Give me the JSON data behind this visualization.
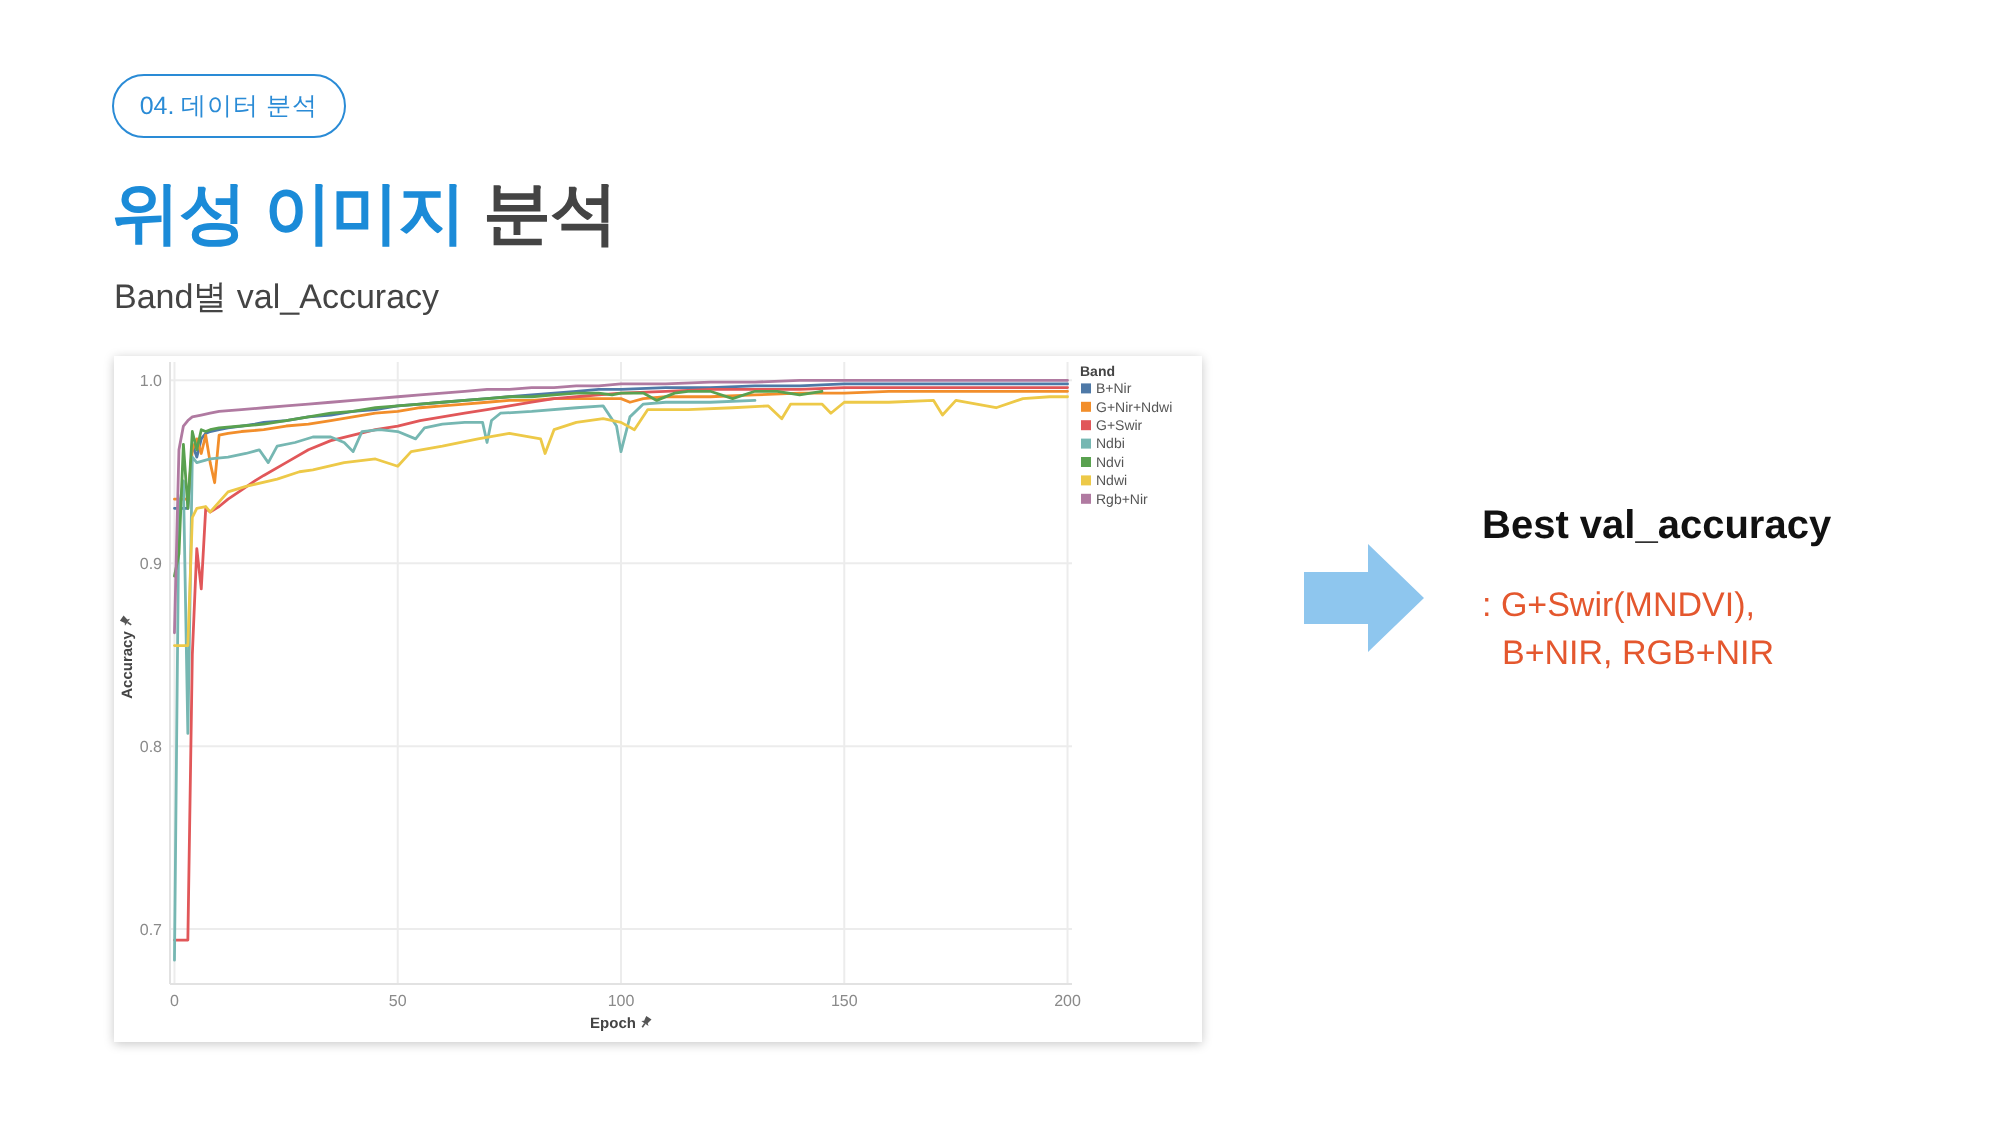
{
  "chart_data": {
    "type": "line",
    "title": "위성 이미지 분석",
    "subtitle": "Band별 val_Accuracy",
    "xlabel": "Epoch",
    "ylabel": "Accuracy",
    "legend_title": "Band",
    "annotations": [
      "04. 데이터 분석",
      "Best val_accuracy",
      ": G+Swir(MNDVI), B+NIR, RGB+NIR"
    ],
    "xlim": [
      -1,
      201
    ],
    "ylim": [
      0.67,
      1.01
    ],
    "xticks": [
      0,
      50,
      100,
      150,
      200
    ],
    "yticks": [
      0.7,
      0.8,
      0.9,
      {
        "value": 1,
        "label": "1.0"
      }
    ],
    "grid": true,
    "legend": "right",
    "line_style": "solid",
    "series": [
      {
        "name": "B+Nir",
        "color": "#4e79a7",
        "x": [
          0,
          1,
          2,
          3,
          4,
          5,
          6,
          7,
          8,
          10,
          12,
          15,
          18,
          20,
          25,
          30,
          35,
          40,
          45,
          50,
          55,
          60,
          65,
          70,
          75,
          80,
          85,
          90,
          95,
          100,
          110,
          120,
          130,
          140,
          150,
          160,
          170,
          180,
          190,
          200
        ],
        "values": [
          0.93,
          0.93,
          0.93,
          0.93,
          0.965,
          0.958,
          0.968,
          0.971,
          0.972,
          0.973,
          0.974,
          0.975,
          0.976,
          0.977,
          0.978,
          0.98,
          0.981,
          0.983,
          0.984,
          0.986,
          0.987,
          0.988,
          0.989,
          0.99,
          0.991,
          0.992,
          0.993,
          0.994,
          0.995,
          0.995,
          0.996,
          0.996,
          0.997,
          0.997,
          0.998,
          0.998,
          0.998,
          0.998,
          0.998,
          0.998
        ]
      },
      {
        "name": "G+Nir+Ndwi",
        "color": "#f28e2b",
        "x": [
          0,
          1,
          2,
          3,
          4,
          5,
          6,
          7,
          8,
          9,
          10,
          12,
          15,
          20,
          25,
          30,
          35,
          40,
          45,
          50,
          55,
          60,
          65,
          70,
          75,
          80,
          85,
          90,
          95,
          100,
          102,
          105,
          110,
          120,
          130,
          140,
          150,
          160,
          170,
          180,
          190,
          200
        ],
        "values": [
          0.935,
          0.935,
          0.935,
          0.935,
          0.962,
          0.968,
          0.96,
          0.97,
          0.955,
          0.944,
          0.97,
          0.971,
          0.972,
          0.973,
          0.975,
          0.976,
          0.978,
          0.98,
          0.982,
          0.983,
          0.985,
          0.986,
          0.987,
          0.988,
          0.989,
          0.989,
          0.99,
          0.99,
          0.99,
          0.99,
          0.988,
          0.99,
          0.991,
          0.991,
          0.992,
          0.993,
          0.993,
          0.994,
          0.994,
          0.994,
          0.994,
          0.994
        ]
      },
      {
        "name": "G+Swir",
        "color": "#e15759",
        "x": [
          0,
          1,
          2,
          3,
          4,
          5,
          6,
          7,
          8,
          10,
          12,
          15,
          18,
          20,
          25,
          30,
          35,
          40,
          45,
          50,
          55,
          60,
          65,
          70,
          75,
          80,
          85,
          90,
          95,
          100,
          110,
          120,
          130,
          140,
          150,
          160,
          170,
          180,
          190,
          200
        ],
        "values": [
          0.694,
          0.694,
          0.694,
          0.694,
          0.85,
          0.908,
          0.886,
          0.93,
          0.928,
          0.931,
          0.935,
          0.94,
          0.945,
          0.948,
          0.955,
          0.962,
          0.967,
          0.97,
          0.973,
          0.975,
          0.978,
          0.98,
          0.982,
          0.984,
          0.986,
          0.988,
          0.99,
          0.991,
          0.992,
          0.993,
          0.994,
          0.995,
          0.995,
          0.995,
          0.996,
          0.996,
          0.996,
          0.996,
          0.996,
          0.996
        ]
      },
      {
        "name": "Ndbi",
        "color": "#76b7b2",
        "x": [
          0,
          1,
          2,
          3,
          4,
          5,
          8,
          12,
          16,
          19,
          21,
          23,
          27,
          31,
          35,
          38,
          40,
          42,
          46,
          50,
          54,
          56,
          60,
          65,
          69,
          70,
          71,
          73,
          80,
          90,
          96,
          99,
          100,
          102,
          105,
          110,
          120,
          130
        ],
        "values": [
          0.683,
          0.93,
          0.945,
          0.807,
          0.958,
          0.955,
          0.957,
          0.958,
          0.96,
          0.962,
          0.955,
          0.964,
          0.966,
          0.969,
          0.969,
          0.966,
          0.961,
          0.972,
          0.973,
          0.972,
          0.968,
          0.974,
          0.976,
          0.977,
          0.977,
          0.966,
          0.978,
          0.982,
          0.983,
          0.985,
          0.986,
          0.975,
          0.961,
          0.98,
          0.987,
          0.988,
          0.988,
          0.989
        ]
      },
      {
        "name": "Ndvi",
        "color": "#59a14f",
        "x": [
          0,
          1,
          2,
          3,
          4,
          5,
          6,
          7,
          8,
          10,
          15,
          20,
          25,
          30,
          35,
          40,
          45,
          50,
          55,
          60,
          65,
          70,
          75,
          80,
          85,
          90,
          95,
          98,
          100,
          105,
          108,
          112,
          115,
          120,
          125,
          130,
          135,
          140,
          145
        ],
        "values": [
          0.893,
          0.905,
          0.965,
          0.93,
          0.972,
          0.962,
          0.973,
          0.972,
          0.973,
          0.974,
          0.975,
          0.976,
          0.978,
          0.98,
          0.982,
          0.983,
          0.985,
          0.986,
          0.987,
          0.988,
          0.989,
          0.99,
          0.991,
          0.991,
          0.992,
          0.993,
          0.993,
          0.992,
          0.993,
          0.993,
          0.989,
          0.993,
          0.994,
          0.994,
          0.99,
          0.994,
          0.994,
          0.992,
          0.994
        ]
      },
      {
        "name": "Ndwi",
        "color": "#edc948",
        "x": [
          0,
          1,
          2,
          3,
          4,
          5,
          7,
          8,
          12,
          16,
          23,
          28,
          31,
          38,
          45,
          50,
          53,
          60,
          68,
          75,
          82,
          83,
          85,
          90,
          96,
          100,
          103,
          106,
          115,
          125,
          133,
          136,
          138,
          145,
          147,
          150,
          160,
          170,
          172,
          175,
          184,
          190,
          196,
          200
        ],
        "values": [
          0.855,
          0.855,
          0.855,
          0.855,
          0.925,
          0.93,
          0.931,
          0.928,
          0.939,
          0.942,
          0.946,
          0.95,
          0.951,
          0.955,
          0.957,
          0.953,
          0.961,
          0.964,
          0.968,
          0.971,
          0.968,
          0.96,
          0.973,
          0.977,
          0.979,
          0.977,
          0.973,
          0.984,
          0.984,
          0.985,
          0.986,
          0.979,
          0.987,
          0.987,
          0.982,
          0.988,
          0.988,
          0.989,
          0.981,
          0.989,
          0.985,
          0.99,
          0.991,
          0.991
        ]
      },
      {
        "name": "Rgb+Nir",
        "color": "#b07aa1",
        "x": [
          0,
          1,
          2,
          3,
          4,
          6,
          8,
          10,
          15,
          20,
          25,
          30,
          35,
          40,
          45,
          50,
          55,
          60,
          65,
          70,
          75,
          80,
          85,
          90,
          95,
          100,
          110,
          120,
          130,
          140,
          150,
          160,
          170,
          180,
          190,
          200
        ],
        "values": [
          0.862,
          0.962,
          0.975,
          0.978,
          0.98,
          0.981,
          0.982,
          0.983,
          0.984,
          0.985,
          0.986,
          0.987,
          0.988,
          0.989,
          0.99,
          0.991,
          0.992,
          0.993,
          0.994,
          0.995,
          0.995,
          0.996,
          0.996,
          0.997,
          0.997,
          0.998,
          0.998,
          0.999,
          0.999,
          1.0,
          1.0,
          1.0,
          1.0,
          1.0,
          1.0,
          1.0
        ]
      }
    ]
  }
}
